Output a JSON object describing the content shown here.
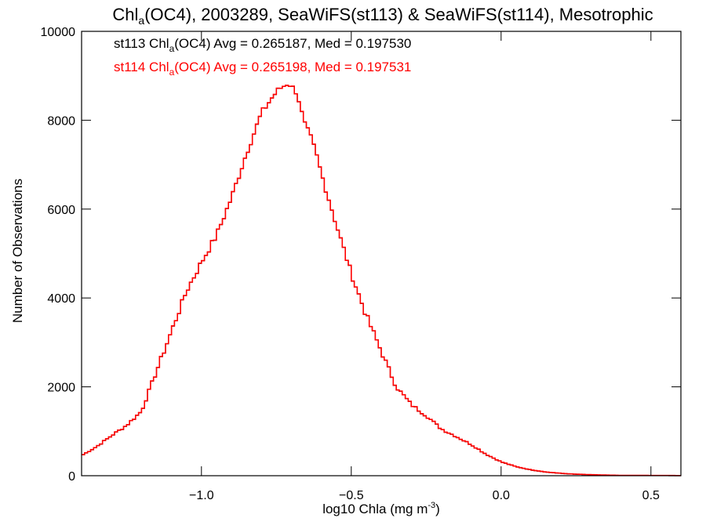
{
  "chart_data": {
    "type": "line",
    "title": {
      "pre": "Chl",
      "sub": "a",
      "post": "(OC4), 2003289, SeaWiFS(st113) & SeaWiFS(st114), Mesotrophic"
    },
    "xlabel": {
      "pre": "log10 Chla (mg m",
      "sup": "-3",
      "post": ")"
    },
    "ylabel": "Number of Observations",
    "xlim": [
      -1.4,
      0.6
    ],
    "ylim": [
      0,
      10000
    ],
    "xticks": [
      -1.0,
      -0.5,
      0.0,
      0.5
    ],
    "xtick_labels": [
      "−1.0",
      "−0.5",
      "0.0",
      "0.5"
    ],
    "yticks": [
      0,
      2000,
      4000,
      6000,
      8000,
      10000
    ],
    "ytick_labels": [
      "0",
      "2000",
      "4000",
      "6000",
      "8000",
      "10000"
    ],
    "legend_placement": "top-left",
    "bin_width": 0.01,
    "series": [
      {
        "color": "#000000",
        "legend": {
          "pre": "st113 Chl",
          "sub": "a",
          "post": "(OC4) Avg = 0.265187, Med = 0.197530"
        }
      },
      {
        "color": "#ff0000",
        "legend": {
          "pre": "st114 Chl",
          "sub": "a",
          "post": "(OC4) Avg = 0.265198, Med = 0.197531"
        }
      }
    ],
    "x": [
      -1.4,
      -1.35,
      -1.3,
      -1.25,
      -1.2,
      -1.15,
      -1.1,
      -1.05,
      -1.0,
      -0.95,
      -0.9,
      -0.85,
      -0.8,
      -0.76,
      -0.74,
      -0.72,
      -0.71,
      -0.7,
      -0.69,
      -0.68,
      -0.67,
      -0.66,
      -0.65,
      -0.64,
      -0.62,
      -0.6,
      -0.55,
      -0.5,
      -0.45,
      -0.4,
      -0.35,
      -0.3,
      -0.25,
      -0.2,
      -0.15,
      -0.1,
      -0.05,
      0.0,
      0.05,
      0.1,
      0.15,
      0.2,
      0.25,
      0.3,
      0.35,
      0.4,
      0.45,
      0.5,
      0.55,
      0.6
    ],
    "y": [
      450,
      650,
      900,
      1130,
      1450,
      2350,
      3250,
      4150,
      4800,
      5400,
      6250,
      7250,
      8150,
      8550,
      8700,
      8790,
      8850,
      8750,
      8700,
      8600,
      8300,
      8000,
      7800,
      7700,
      7300,
      6800,
      5650,
      4550,
      3600,
      2800,
      2000,
      1600,
      1350,
      1050,
      880,
      700,
      480,
      310,
      200,
      130,
      80,
      50,
      30,
      20,
      10,
      5,
      3,
      2,
      1,
      0
    ]
  }
}
